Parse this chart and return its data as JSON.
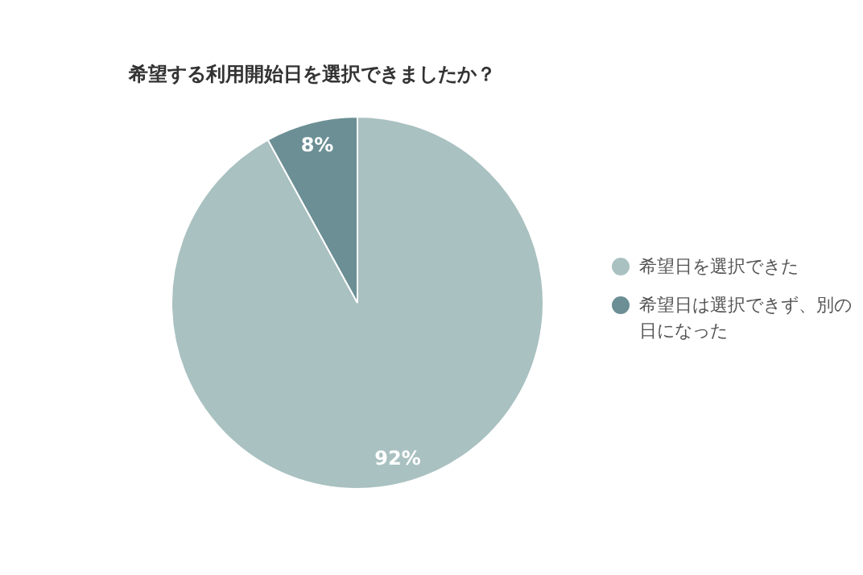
{
  "chart_data": {
    "type": "pie",
    "title": "希望する利用開始日を選択できましたか？",
    "categories": [
      "希望日を選択できた",
      "希望日は選択できず、別の日になった"
    ],
    "values": [
      92,
      8
    ],
    "colors": [
      "#a9c1c0",
      "#6b8f94"
    ],
    "value_labels": [
      "92%",
      "8%"
    ],
    "legend": "right"
  }
}
